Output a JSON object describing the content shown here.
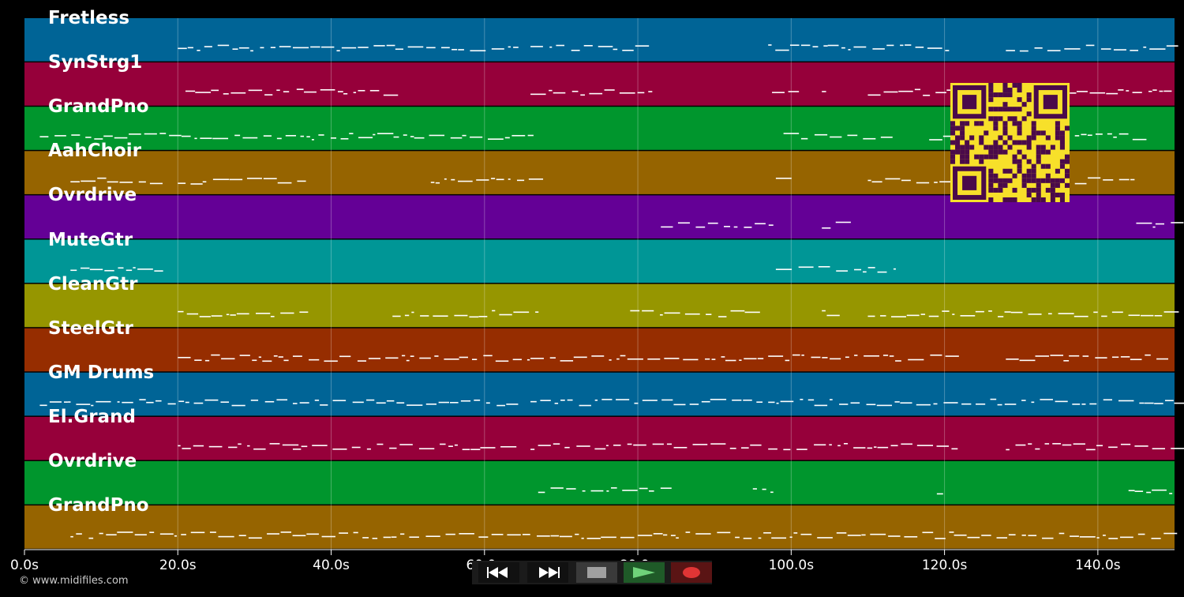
{
  "tracks": [
    {
      "name": "Fretless",
      "color": "#006496"
    },
    {
      "name": "SynStrg1",
      "color": "#96003a"
    },
    {
      "name": "GrandPno",
      "color": "#00962d"
    },
    {
      "name": "AahChoir",
      "color": "#966400"
    },
    {
      "name": "Ovrdrive",
      "color": "#640096"
    },
    {
      "name": "MuteGtr",
      "color": "#009696"
    },
    {
      "name": "CleanGtr",
      "color": "#969600"
    },
    {
      "name": "SteelGtr",
      "color": "#962d00"
    },
    {
      "name": "GM Drums",
      "color": "#006496"
    },
    {
      "name": "El.Grand",
      "color": "#96003a"
    },
    {
      "name": "Ovrdrive",
      "color": "#00962d"
    },
    {
      "name": "GrandPno",
      "color": "#966400"
    }
  ],
  "timeline": {
    "max_seconds": 150,
    "ticks": [
      "0.0s",
      "20.0s",
      "40.0s",
      "60.0s",
      "80.0s",
      "100.0s",
      "120.0s",
      "140.0s"
    ]
  },
  "copyright": "© www.midifiles.com",
  "transport": {
    "rewind_icon": "rewind-icon",
    "fast_forward_icon": "fast-forward-icon",
    "stop_icon": "stop-icon",
    "play_icon": "play-icon",
    "record_icon": "record-icon"
  },
  "qr": {
    "icon": "qr-code-icon",
    "color": "#f7e02a"
  }
}
